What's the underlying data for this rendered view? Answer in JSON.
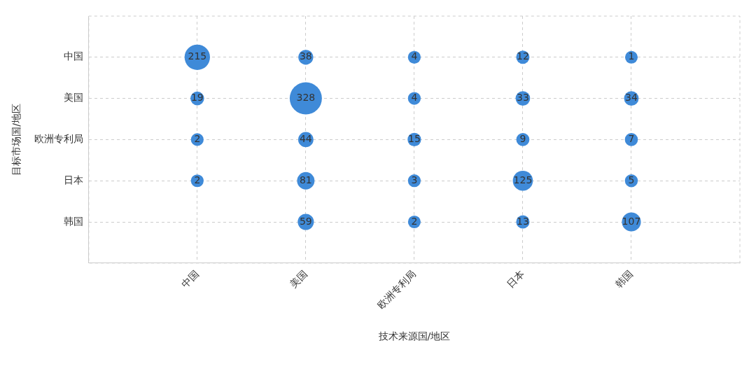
{
  "chart_data": {
    "type": "heatmap",
    "marker": "circle",
    "xlabel": "技术来源国/地区",
    "ylabel": "目标市场国/地区",
    "categories": [
      "中国",
      "美国",
      "欧洲专利局",
      "日本",
      "韩国"
    ],
    "y_categories": [
      "中国",
      "美国",
      "欧洲专利局",
      "日本",
      "韩国"
    ],
    "cells": [
      [
        215,
        38,
        4,
        12,
        1
      ],
      [
        19,
        328,
        4,
        33,
        34
      ],
      [
        2,
        44,
        15,
        9,
        7
      ],
      [
        2,
        81,
        3,
        125,
        5
      ],
      [
        null,
        59,
        2,
        13,
        107
      ]
    ],
    "color": "#3f8ad8",
    "grid": true,
    "data_labels": true
  }
}
